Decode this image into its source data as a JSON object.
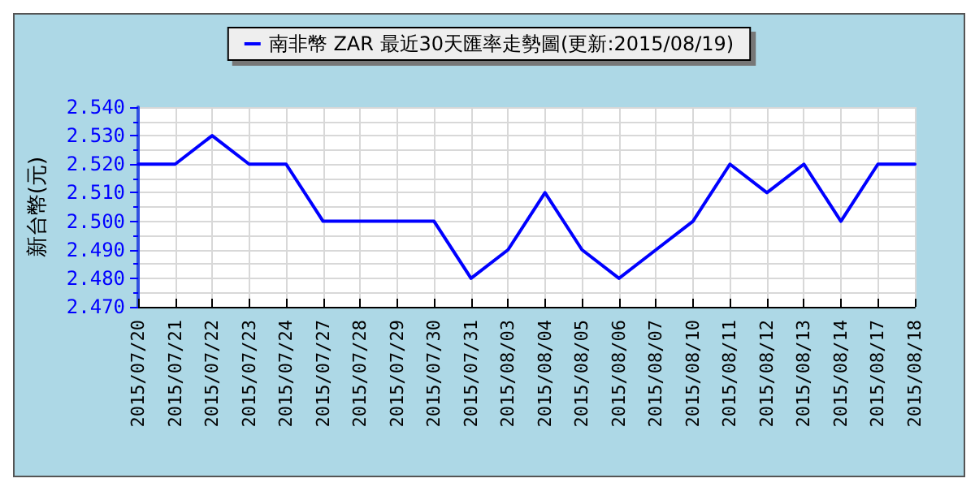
{
  "chart_data": {
    "type": "line",
    "ylabel": "新台幣(元)",
    "categories": [
      "2015/07/20",
      "2015/07/21",
      "2015/07/22",
      "2015/07/23",
      "2015/07/24",
      "2015/07/27",
      "2015/07/28",
      "2015/07/29",
      "2015/07/30",
      "2015/07/31",
      "2015/08/03",
      "2015/08/04",
      "2015/08/05",
      "2015/08/06",
      "2015/08/07",
      "2015/08/10",
      "2015/08/11",
      "2015/08/12",
      "2015/08/13",
      "2015/08/14",
      "2015/08/17",
      "2015/08/18"
    ],
    "series": [
      {
        "name": "南非幣 ZAR 最近30天匯率走勢圖(更新:2015/08/19)",
        "color": "#0000ff",
        "values": [
          2.52,
          2.52,
          2.53,
          2.52,
          2.52,
          2.5,
          2.5,
          2.5,
          2.5,
          2.48,
          2.49,
          2.51,
          2.49,
          2.48,
          2.49,
          2.5,
          2.52,
          2.51,
          2.52,
          2.5,
          2.52,
          2.52
        ]
      }
    ],
    "ylim": [
      2.47,
      2.54
    ],
    "yticks": [
      {
        "value": 2.47,
        "label": "2.470"
      },
      {
        "value": 2.48,
        "label": "2.480"
      },
      {
        "value": 2.49,
        "label": "2.490"
      },
      {
        "value": 2.5,
        "label": "2.500"
      },
      {
        "value": 2.51,
        "label": "2.510"
      },
      {
        "value": 2.52,
        "label": "2.520"
      },
      {
        "value": 2.53,
        "label": "2.530"
      },
      {
        "value": 2.54,
        "label": "2.540"
      }
    ],
    "grid": true,
    "legend": "top",
    "marker": "none",
    "line_style": "solid"
  }
}
